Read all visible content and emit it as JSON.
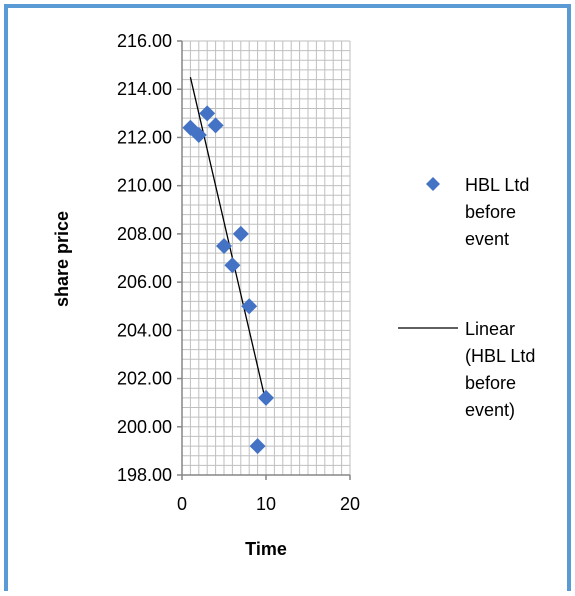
{
  "chart_data": {
    "type": "scatter",
    "title": "",
    "xlabel": "Time",
    "ylabel": "share price",
    "xlim": [
      0,
      20
    ],
    "ylim": [
      198,
      216
    ],
    "x_ticks": [
      "0",
      "10",
      "20"
    ],
    "y_ticks": [
      "198.00",
      "200.00",
      "202.00",
      "204.00",
      "206.00",
      "208.00",
      "210.00",
      "212.00",
      "214.00",
      "216.00"
    ],
    "grid": true,
    "legend_position": "right",
    "series": [
      {
        "name": "HBL Ltd before event",
        "legend_lines": [
          "HBL Ltd",
          "before",
          "event"
        ],
        "marker": "diamond",
        "color": "#4472C4",
        "points": [
          {
            "x": 1,
            "y": 212.4
          },
          {
            "x": 2,
            "y": 212.1
          },
          {
            "x": 3,
            "y": 213.0
          },
          {
            "x": 4,
            "y": 212.5
          },
          {
            "x": 5,
            "y": 207.5
          },
          {
            "x": 6,
            "y": 206.7
          },
          {
            "x": 7,
            "y": 208.0
          },
          {
            "x": 8,
            "y": 205.0
          },
          {
            "x": 9,
            "y": 199.2
          },
          {
            "x": 10,
            "y": 201.2
          }
        ]
      }
    ],
    "trendline": {
      "name": "Linear (HBL Ltd before event)",
      "legend_lines": [
        "Linear",
        "(HBL Ltd",
        "before",
        "event)"
      ],
      "color": "#000000",
      "points": [
        {
          "x": 1,
          "y": 214.5
        },
        {
          "x": 10,
          "y": 201.0
        }
      ]
    },
    "colors": {
      "frame_border": "#5B9BD5",
      "grid": "#BFBFBF",
      "axis": "#868686"
    }
  }
}
